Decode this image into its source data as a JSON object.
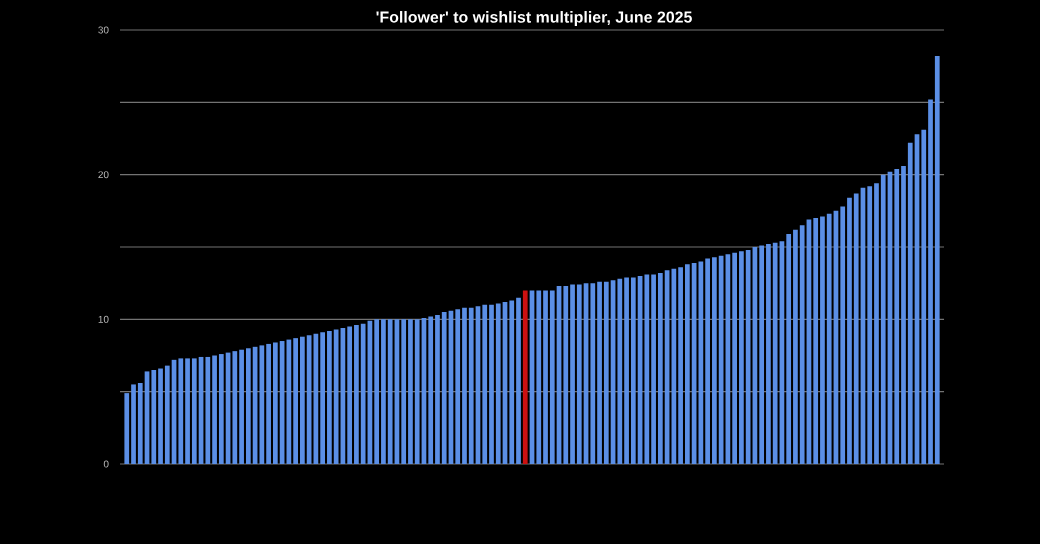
{
  "chart_data": {
    "type": "bar",
    "title": "'Follower' to wishlist multiplier, June 2025",
    "categories": [
      null,
      null,
      null,
      null,
      null,
      null,
      null,
      null,
      null,
      null,
      null,
      null,
      null,
      null,
      null,
      null,
      null,
      null,
      null,
      null,
      null,
      null,
      null,
      null,
      null,
      null,
      null,
      null,
      null,
      null,
      null,
      null,
      null,
      null,
      null,
      null,
      null,
      null,
      null,
      null,
      null,
      null,
      null,
      null,
      null,
      null,
      null,
      null,
      null,
      null,
      null,
      null,
      null,
      null,
      null,
      null,
      null,
      null,
      null,
      null,
      null,
      null,
      null,
      null,
      null,
      null,
      null,
      null,
      null,
      null,
      null,
      null,
      null,
      null,
      null,
      null,
      null,
      null,
      null,
      null,
      null,
      null,
      null,
      null,
      null,
      null,
      null,
      null,
      null,
      null,
      null,
      null,
      null,
      null,
      null,
      null,
      null,
      null,
      null,
      null,
      null,
      null,
      null,
      null,
      null,
      null,
      null,
      null,
      null,
      null,
      null,
      null,
      null,
      null,
      null,
      null,
      null,
      null,
      null,
      null,
      null
    ],
    "values": [
      4.9,
      5.5,
      5.6,
      6.4,
      6.5,
      6.6,
      6.8,
      7.2,
      7.3,
      7.3,
      7.3,
      7.4,
      7.4,
      7.5,
      7.6,
      7.7,
      7.8,
      7.9,
      8.0,
      8.1,
      8.2,
      8.3,
      8.4,
      8.5,
      8.6,
      8.7,
      8.8,
      8.9,
      9.0,
      9.1,
      9.2,
      9.3,
      9.4,
      9.5,
      9.6,
      9.7,
      9.9,
      10,
      10,
      10,
      10,
      10,
      10,
      10,
      10.1,
      10.2,
      10.3,
      10.5,
      10.6,
      10.7,
      10.8,
      10.8,
      10.9,
      11.0,
      11.0,
      11.1,
      11.2,
      11.3,
      11.5,
      12.0,
      12.0,
      12.0,
      12.0,
      12.0,
      12.3,
      12.3,
      12.4,
      12.4,
      12.5,
      12.5,
      12.6,
      12.6,
      12.7,
      12.8,
      12.9,
      12.9,
      13.0,
      13.1,
      13.1,
      13.2,
      13.4,
      13.5,
      13.6,
      13.8,
      13.9,
      14.0,
      14.2,
      14.3,
      14.4,
      14.5,
      14.6,
      14.7,
      14.8,
      15.0,
      15.1,
      15.2,
      15.3,
      15.4,
      15.9,
      16.2,
      16.5,
      16.9,
      17.0,
      17.1,
      17.3,
      17.5,
      17.8,
      18.4,
      18.7,
      19.1,
      19.2,
      19.4,
      20.0,
      20.2,
      20.4,
      20.6,
      22.2,
      22.8,
      23.1,
      25.2,
      28.2
    ],
    "colors": [
      "#5b8fe6",
      "#5b8fe6",
      "#5b8fe6",
      "#5b8fe6",
      "#5b8fe6",
      "#5b8fe6",
      "#5b8fe6",
      "#5b8fe6",
      "#5b8fe6",
      "#5b8fe6",
      "#5b8fe6",
      "#5b8fe6",
      "#5b8fe6",
      "#5b8fe6",
      "#5b8fe6",
      "#5b8fe6",
      "#5b8fe6",
      "#5b8fe6",
      "#5b8fe6",
      "#5b8fe6",
      "#5b8fe6",
      "#5b8fe6",
      "#5b8fe6",
      "#5b8fe6",
      "#5b8fe6",
      "#5b8fe6",
      "#5b8fe6",
      "#5b8fe6",
      "#5b8fe6",
      "#5b8fe6",
      "#5b8fe6",
      "#5b8fe6",
      "#5b8fe6",
      "#5b8fe6",
      "#5b8fe6",
      "#5b8fe6",
      "#5b8fe6",
      "#5b8fe6",
      "#5b8fe6",
      "#5b8fe6",
      "#5b8fe6",
      "#5b8fe6",
      "#5b8fe6",
      "#5b8fe6",
      "#5b8fe6",
      "#5b8fe6",
      "#5b8fe6",
      "#5b8fe6",
      "#5b8fe6",
      "#5b8fe6",
      "#5b8fe6",
      "#5b8fe6",
      "#5b8fe6",
      "#5b8fe6",
      "#5b8fe6",
      "#5b8fe6",
      "#5b8fe6",
      "#5b8fe6",
      "#5b8fe6",
      "#cc1111",
      "#5b8fe6",
      "#5b8fe6",
      "#5b8fe6",
      "#5b8fe6",
      "#5b8fe6",
      "#5b8fe6",
      "#5b8fe6",
      "#5b8fe6",
      "#5b8fe6",
      "#5b8fe6",
      "#5b8fe6",
      "#5b8fe6",
      "#5b8fe6",
      "#5b8fe6",
      "#5b8fe6",
      "#5b8fe6",
      "#5b8fe6",
      "#5b8fe6",
      "#5b8fe6",
      "#5b8fe6",
      "#5b8fe6",
      "#5b8fe6",
      "#5b8fe6",
      "#5b8fe6",
      "#5b8fe6",
      "#5b8fe6",
      "#5b8fe6",
      "#5b8fe6",
      "#5b8fe6",
      "#5b8fe6",
      "#5b8fe6",
      "#5b8fe6",
      "#5b8fe6",
      "#5b8fe6",
      "#5b8fe6",
      "#5b8fe6",
      "#5b8fe6",
      "#5b8fe6",
      "#5b8fe6",
      "#5b8fe6",
      "#5b8fe6",
      "#5b8fe6",
      "#5b8fe6",
      "#5b8fe6",
      "#5b8fe6",
      "#5b8fe6",
      "#5b8fe6",
      "#5b8fe6",
      "#5b8fe6",
      "#5b8fe6",
      "#5b8fe6",
      "#5b8fe6",
      "#5b8fe6",
      "#5b8fe6",
      "#5b8fe6",
      "#5b8fe6",
      "#5b8fe6",
      "#5b8fe6",
      "#5b8fe6",
      "#5b8fe6",
      "#5b8fe6"
    ],
    "ylim": [
      0,
      30
    ],
    "yticks": [
      0,
      {
        "value": 5,
        "label": null
      },
      10,
      {
        "value": 15,
        "label": null
      },
      20,
      {
        "value": 25,
        "label": null
      },
      30
    ],
    "grid": "y",
    "tick_labels": "y"
  }
}
